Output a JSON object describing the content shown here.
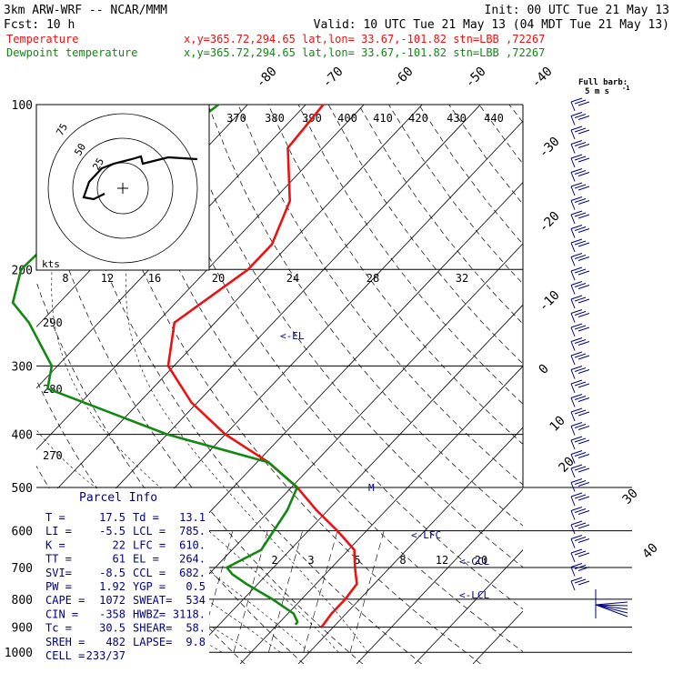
{
  "header": {
    "line1_left": "3km ARW-WRF -- NCAR/MMM",
    "line1_right": "Init: 00 UTC Tue 21 May 13",
    "line2_left": "Fcst:    10 h",
    "line2_right": "Valid: 10 UTC Tue 21 May 13 (04 MDT Tue 21 May 13)",
    "temp_label": "Temperature",
    "dew_label": "Dewpoint temperature",
    "temp_info": "x,y=365.72,294.65   lat,lon= 33.67,-101.82  stn=LBB ,72267",
    "dew_info": "x,y=365.72,294.65   lat,lon= 33.67,-101.82  stn=LBB ,72267",
    "barb_note1": "Full barb:",
    "barb_note2": "5 m s",
    "barb_note_exp": "-1"
  },
  "colors": {
    "temperature": "#ee1111",
    "dewpoint": "#118811",
    "markers": "#000088"
  },
  "chart_data": {
    "type": "line",
    "pressure_levels": [
      "100",
      "200",
      "300",
      "400",
      "500",
      "600",
      "700",
      "800",
      "900",
      "1000"
    ],
    "isotherm_labels": [
      "-80",
      "-70",
      "-60",
      "-50",
      "-40",
      "-30",
      "-20",
      "-10",
      "0",
      "10",
      "20",
      "30",
      "40"
    ],
    "theta_labels": [
      "370",
      "380",
      "390",
      "400",
      "410",
      "420",
      "430",
      "440"
    ],
    "adiabat_labels": [
      "290",
      "280",
      "270"
    ],
    "mixing_ratio_labels": [
      "2",
      "3",
      "5",
      "8",
      "12",
      "20"
    ],
    "hodo_scale_labels": [
      "8",
      "12",
      "16",
      "20",
      "24",
      "28",
      "32"
    ],
    "hodo_ring_labels": [
      "75",
      "50",
      "25"
    ],
    "hodo_units": "kts",
    "series": [
      {
        "name": "Temperature",
        "p": [
          100,
          120,
          150,
          180,
          200,
          250,
          300,
          350,
          400,
          450,
          500,
          550,
          600,
          650,
          700,
          750,
          800,
          850,
          900
        ],
        "t": [
          -67,
          -66,
          -57,
          -53,
          -53,
          -57,
          -51,
          -41,
          -30,
          -18,
          -9,
          -2,
          5,
          11,
          14,
          17,
          17.5,
          17.5,
          18
        ]
      },
      {
        "name": "Dewpoint",
        "p": [
          100,
          150,
          200,
          230,
          250,
          300,
          330,
          400,
          450,
          500,
          550,
          650,
          700,
          720,
          750,
          800,
          850,
          880,
          890
        ],
        "t": [
          -85,
          -91,
          -92,
          -88,
          -82,
          -71,
          -68,
          -40,
          -18,
          -9,
          -7,
          -5,
          -8,
          -6,
          -2,
          5,
          11,
          13,
          13.1
        ]
      }
    ],
    "annotations": [
      {
        "text": "<-EL",
        "p": 264
      },
      {
        "text": "<-LFC",
        "p": 610
      },
      {
        "text": "<-CCL",
        "p": 682
      },
      {
        "text": "<-LCL",
        "p": 785
      },
      {
        "text": "M",
        "p": 500
      }
    ]
  },
  "parcel": {
    "title": "Parcel Info",
    "rows": [
      [
        "T  =",
        "17.5",
        "Td  =",
        "13.1"
      ],
      [
        "LI =",
        "-5.5",
        "LCL =",
        "785."
      ],
      [
        "K  =",
        "22",
        "LFC =",
        "610."
      ],
      [
        "TT =",
        "61",
        "EL  =",
        "264."
      ],
      [
        "SVI=",
        "-8.5",
        "CCL =",
        "682."
      ],
      [
        "PW =",
        "1.92",
        "YGP =",
        "0.5"
      ],
      [
        "CAPE =",
        "1072",
        "SWEAT=",
        "534"
      ],
      [
        "CIN  =",
        "-358",
        "HWBZ=",
        "3118."
      ],
      [
        "Tc   =",
        "30.5",
        "SHEAR=",
        "58."
      ],
      [
        "SREH =",
        "482",
        "LAPSE=",
        "9.8"
      ],
      [
        "CELL =",
        "233/37",
        "",
        ""
      ]
    ]
  }
}
